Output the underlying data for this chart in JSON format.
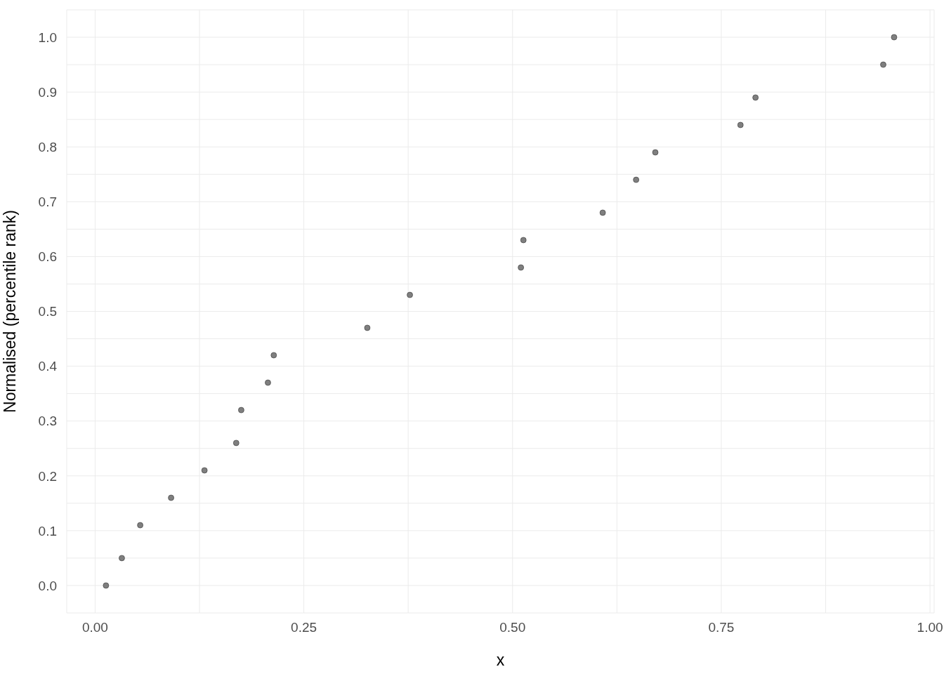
{
  "chart_data": {
    "type": "scatter",
    "xlabel": "x",
    "ylabel": "Normalised (percentile rank)",
    "x": [
      0.013,
      0.032,
      0.054,
      0.091,
      0.131,
      0.169,
      0.175,
      0.207,
      0.214,
      0.326,
      0.377,
      0.51,
      0.513,
      0.608,
      0.648,
      0.671,
      0.773,
      0.791,
      0.944,
      0.957
    ],
    "values": [
      0,
      0.05,
      0.11,
      0.16,
      0.21,
      0.26,
      0.32,
      0.37,
      0.42,
      0.47,
      0.53,
      0.58,
      0.63,
      0.68,
      0.74,
      0.79,
      0.84,
      0.89,
      0.95,
      1.0
    ],
    "color": "#7f7f7f",
    "marker": "circle",
    "grid": true,
    "xlim": [
      -0.034,
      1.005
    ],
    "ylim": [
      -0.05,
      1.05
    ],
    "xticks": [
      {
        "value": 0,
        "label": "0.00"
      },
      {
        "value": 0.125,
        "label": null
      },
      {
        "value": 0.25,
        "label": "0.25"
      },
      {
        "value": 0.375,
        "label": null
      },
      {
        "value": 0.5,
        "label": "0.50"
      },
      {
        "value": 0.625,
        "label": null
      },
      {
        "value": 0.75,
        "label": "0.75"
      },
      {
        "value": 0.875,
        "label": null
      },
      {
        "value": 1,
        "label": "1.00"
      }
    ],
    "yticks": [
      {
        "value": -0.05,
        "label": null
      },
      {
        "value": 0,
        "label": "0.0"
      },
      {
        "value": 0.05,
        "label": null
      },
      {
        "value": 0.1,
        "label": "0.1"
      },
      {
        "value": 0.15,
        "label": null
      },
      {
        "value": 0.2,
        "label": "0.2"
      },
      {
        "value": 0.25,
        "label": null
      },
      {
        "value": 0.3,
        "label": "0.3"
      },
      {
        "value": 0.35,
        "label": null
      },
      {
        "value": 0.4,
        "label": "0.4"
      },
      {
        "value": 0.45,
        "label": null
      },
      {
        "value": 0.5,
        "label": "0.5"
      },
      {
        "value": 0.55,
        "label": null
      },
      {
        "value": 0.6,
        "label": "0.6"
      },
      {
        "value": 0.65,
        "label": null
      },
      {
        "value": 0.7,
        "label": "0.7"
      },
      {
        "value": 0.75,
        "label": null
      },
      {
        "value": 0.8,
        "label": "0.8"
      },
      {
        "value": 0.85,
        "label": null
      },
      {
        "value": 0.9,
        "label": "0.9"
      },
      {
        "value": 0.95,
        "label": null
      },
      {
        "value": 1,
        "label": "1.0"
      },
      {
        "value": 1.05,
        "label": null
      }
    ]
  }
}
